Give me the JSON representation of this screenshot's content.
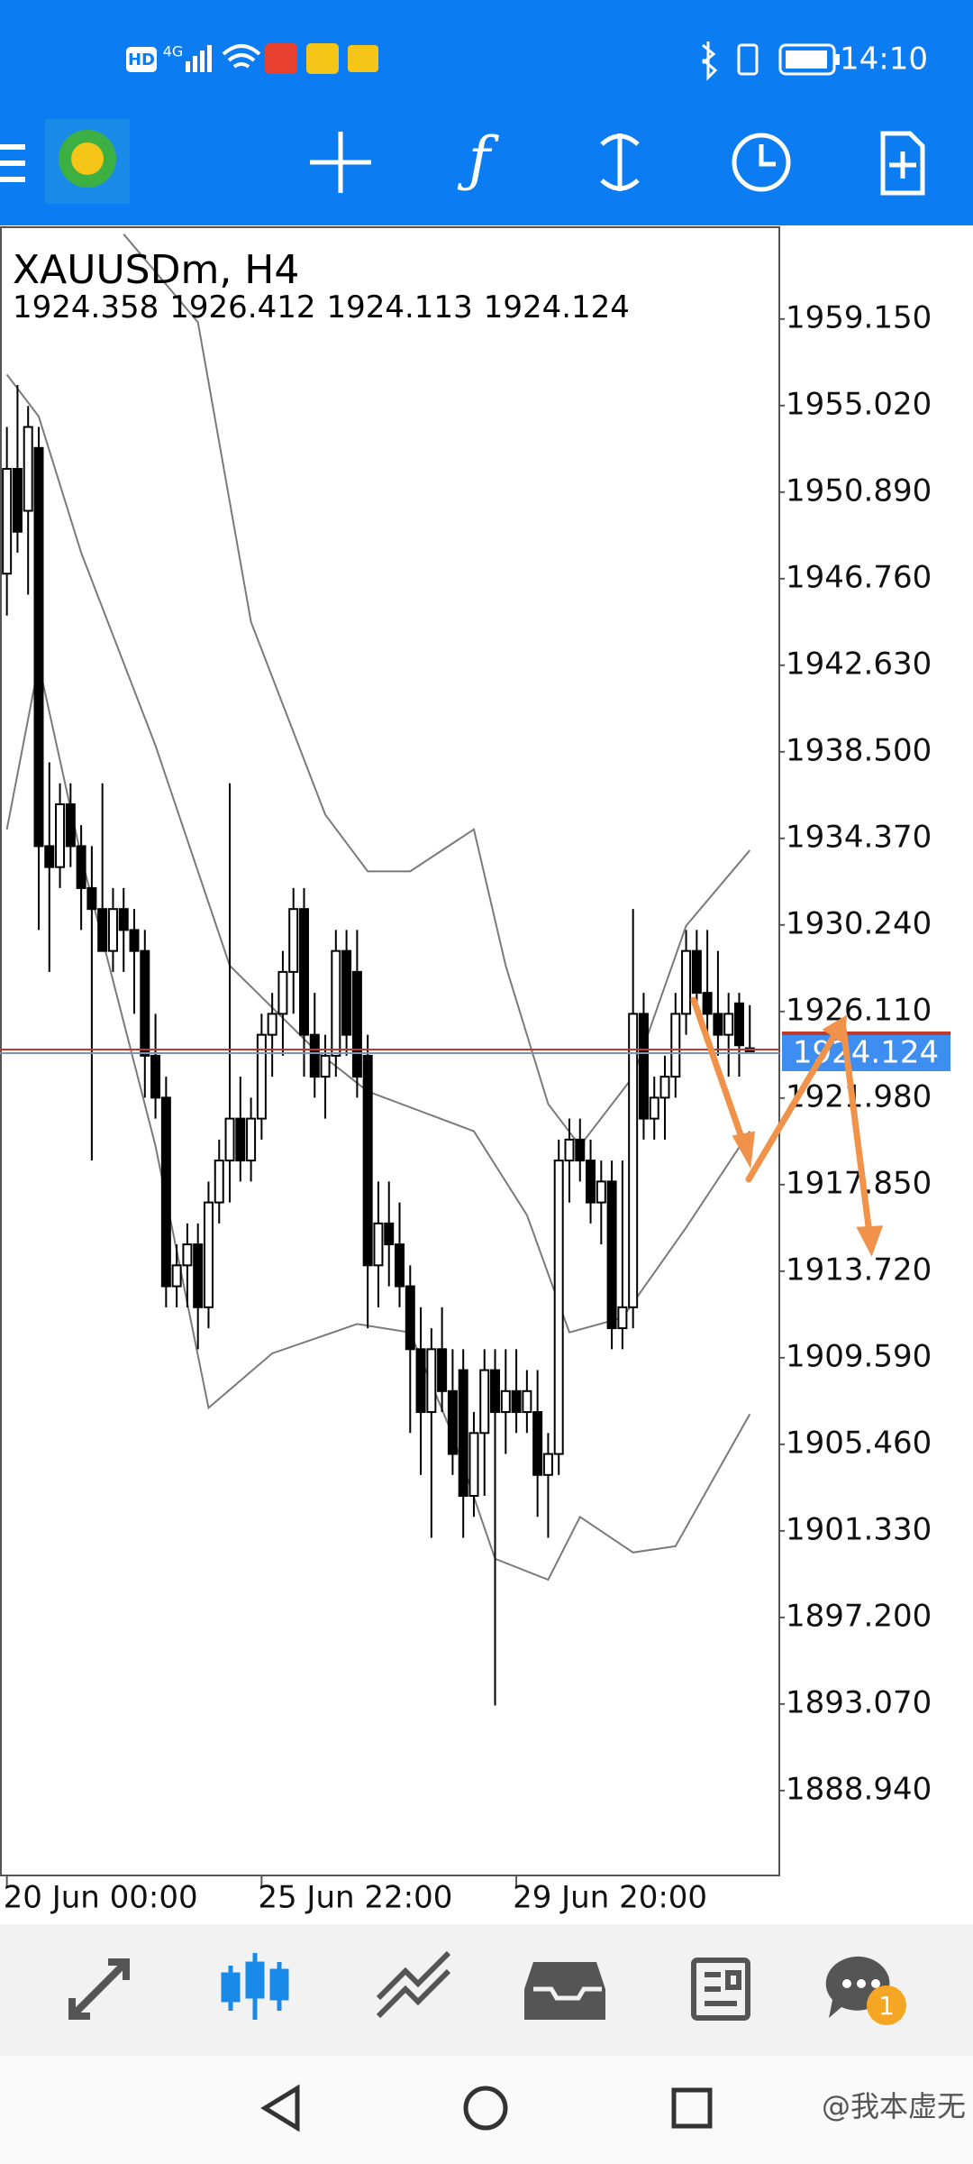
{
  "status_bar": {
    "hd": "HD",
    "network": "4G",
    "time": "14:10"
  },
  "chart_data": {
    "type": "candlestick",
    "title": "XAUUSDm, H4",
    "categories": [
      "20 Jun 00:00",
      null,
      null,
      null,
      null,
      null,
      null,
      null,
      null,
      null,
      null,
      null,
      null,
      null,
      null,
      null,
      null,
      null,
      null,
      null,
      null,
      null,
      null,
      null,
      "25 Jun 22:00",
      null,
      null,
      null,
      null,
      null,
      null,
      null,
      null,
      null,
      null,
      null,
      null,
      null,
      null,
      null,
      null,
      null,
      null,
      null,
      null,
      null,
      null,
      null,
      "29 Jun 20:00",
      null,
      null,
      null,
      null,
      null,
      null,
      null,
      null,
      null,
      null,
      null,
      null,
      null,
      null,
      null,
      null,
      null,
      null,
      null,
      null,
      null,
      null
    ],
    "open": [
      1947,
      1952,
      1950,
      1953,
      1934,
      1933,
      1936,
      1934,
      1932,
      1931,
      1929,
      1931,
      1930,
      1929,
      1924,
      1922,
      1913,
      1914,
      1915,
      1912,
      1917,
      1919,
      1921,
      1919,
      1921,
      1925,
      1926,
      1928,
      1931,
      1925,
      1923,
      1924,
      1929,
      1928,
      1924,
      1914,
      1916,
      1915,
      1913,
      1910,
      1907,
      1910,
      1908,
      1909,
      1903,
      1906,
      1909,
      1907,
      1908,
      1907,
      1907,
      1904,
      1905,
      1919,
      1920,
      1919,
      1917,
      1918,
      1911,
      1912,
      1926,
      1921,
      1922,
      1923,
      1926,
      1929,
      1927,
      1926,
      1925,
      1926.5,
      1924.358
    ],
    "high": [
      1954,
      1956,
      1955,
      1954,
      1938,
      1937,
      1937,
      1935,
      1934,
      1937,
      1932,
      1932,
      1931,
      1930,
      1926,
      1923,
      1915,
      1916,
      1916,
      1918,
      1920,
      1937,
      1923,
      1922,
      1926,
      1927,
      1929,
      1932,
      1932,
      1927,
      1925,
      1930,
      1930,
      1930,
      1925,
      1918,
      1918,
      1917,
      1914,
      1912,
      1911,
      1912,
      1910,
      1910,
      1907,
      1910,
      1910,
      1910,
      1910,
      1909,
      1909,
      1906,
      1920,
      1921,
      1921,
      1920,
      1919,
      1919,
      1919,
      1931,
      1927,
      1923,
      1924,
      1927,
      1930,
      1930,
      1930,
      1929,
      1927,
      1927,
      1926.412
    ],
    "low": [
      1945,
      1948,
      1946,
      1930,
      1928,
      1932,
      1933,
      1930,
      1919,
      1929,
      1928,
      1928,
      1926,
      1922,
      1921,
      1912,
      1912,
      1912,
      1910,
      1911,
      1916,
      1917,
      1918,
      1918,
      1920,
      1923,
      1924,
      1926,
      1923,
      1922,
      1921,
      1923,
      1924,
      1922,
      1911,
      1912,
      1913,
      1912,
      1906,
      1904,
      1901,
      1907,
      1904,
      1901,
      1902,
      1903,
      1893,
      1905,
      1906,
      1906,
      1902,
      1901,
      1904,
      1917,
      1918,
      1916,
      1915,
      1910,
      1910,
      1911,
      1920,
      1920,
      1920,
      1922,
      1925,
      1926,
      1925,
      1924,
      1923,
      1923,
      1924.113
    ],
    "close": [
      1952,
      1949,
      1954,
      1934,
      1933,
      1936,
      1934,
      1932,
      1931,
      1929,
      1931,
      1930,
      1929,
      1924,
      1922,
      1913,
      1914,
      1915,
      1912,
      1917,
      1919,
      1921,
      1919,
      1921,
      1925,
      1926,
      1928,
      1931,
      1925,
      1923,
      1924,
      1929,
      1925,
      1923,
      1914,
      1916,
      1915,
      1913,
      1910,
      1907,
      1910,
      1908,
      1905,
      1903,
      1906,
      1909,
      1907,
      1908,
      1907,
      1908,
      1904,
      1905,
      1919,
      1920,
      1919,
      1917,
      1918,
      1911,
      1912,
      1926,
      1921,
      1922,
      1923,
      1926,
      1929,
      1927,
      1926,
      1925,
      1926,
      1924.5,
      1924.124
    ],
    "up_color": "#ffffff",
    "down_color": "#000000",
    "bid_color": "#7f93b8",
    "series": [
      {
        "color": "#7a7a7a",
        "x": [
          11,
          18,
          23,
          30,
          34,
          38,
          44,
          47,
          51,
          54,
          59,
          64,
          70
        ],
        "values": [
          1963.2,
          1959,
          1944.7,
          1935.5,
          1932.8,
          1932.8,
          1934.8,
          1928.3,
          1921.7,
          1919.7,
          1923,
          1930.2,
          1933.8
        ]
      },
      {
        "color": "#7a7a7a",
        "x": [
          0,
          3,
          7,
          14,
          21,
          29,
          34,
          44,
          49,
          53,
          58,
          64,
          70
        ],
        "values": [
          1956.5,
          1954.5,
          1948,
          1938.8,
          1928.3,
          1924.3,
          1922.3,
          1920.4,
          1916.4,
          1910.8,
          1911.5,
          1915.8,
          1920.4
        ]
      },
      {
        "color": "#7a7a7a",
        "x": [
          0,
          3,
          7,
          14,
          19,
          25,
          33,
          38,
          42,
          46,
          51,
          54,
          59,
          63,
          70
        ],
        "values": [
          1934.8,
          1942.7,
          1933.5,
          1919.7,
          1907.2,
          1909.8,
          1911.2,
          1910.8,
          1905.9,
          1900,
          1899,
          1902,
          1900.3,
          1900.6,
          1906.9
        ]
      }
    ],
    "ylim": [
      1884.89,
      1963.53
    ],
    "yticks": [
      {
        "value": 1959.15,
        "label": "1959.150"
      },
      {
        "value": 1955.02,
        "label": "1955.020"
      },
      {
        "value": 1950.89,
        "label": "1950.890"
      },
      {
        "value": 1946.76,
        "label": "1946.760"
      },
      {
        "value": 1942.63,
        "label": "1942.630"
      },
      {
        "value": 1938.5,
        "label": "1938.500"
      },
      {
        "value": 1934.37,
        "label": "1934.370"
      },
      {
        "value": 1930.24,
        "label": "1930.240"
      },
      {
        "value": 1926.11,
        "label": "1926.110"
      },
      {
        "value": 1921.98,
        "label": "1921.980"
      },
      {
        "value": 1917.85,
        "label": "1917.850"
      },
      {
        "value": 1913.72,
        "label": "1913.720"
      },
      {
        "value": 1909.59,
        "label": "1909.590"
      },
      {
        "value": 1905.46,
        "label": "1905.460"
      },
      {
        "value": 1901.33,
        "label": "1901.330"
      },
      {
        "value": 1897.2,
        "label": "1897.200"
      },
      {
        "value": 1893.07,
        "label": "1893.070"
      },
      {
        "value": 1888.94,
        "label": "1888.940"
      }
    ]
  },
  "bottom_nav": {
    "chat_badge": 1
  },
  "watermark": "@我本虚无"
}
